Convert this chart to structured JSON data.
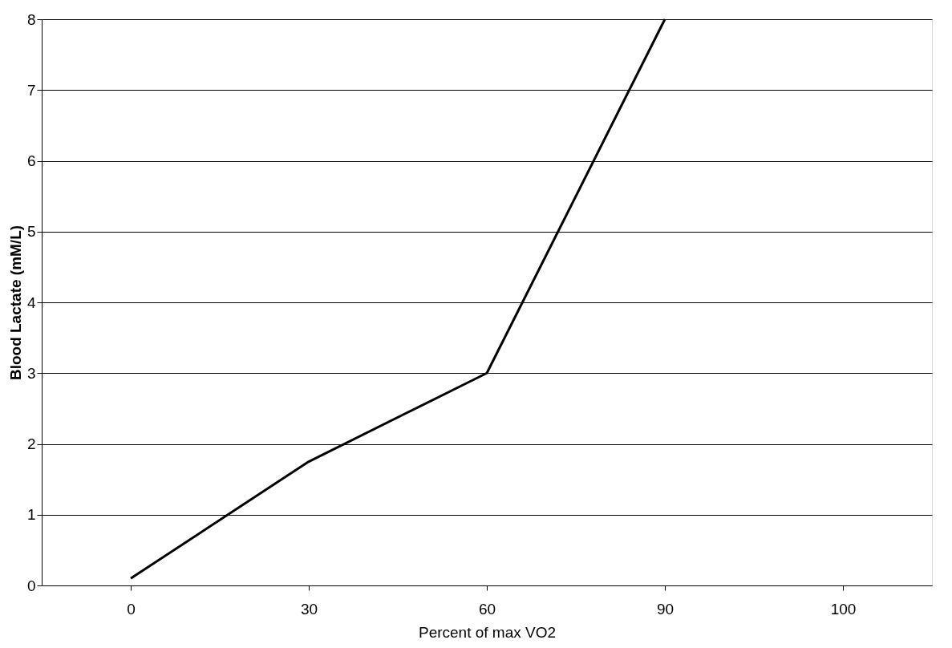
{
  "chart_data": {
    "type": "line",
    "xlabel": "Percent of max VO2",
    "ylabel": "Blood Lactate (mM/L)",
    "categories": [
      "0",
      "30",
      "60",
      "90",
      "100"
    ],
    "series": [
      {
        "color": "#000000",
        "values": [
          0.1,
          1.75,
          3,
          8,
          null
        ]
      }
    ],
    "ylim": [
      0,
      8
    ],
    "yticks": [
      0,
      1,
      2,
      3,
      4,
      5,
      6,
      7,
      8
    ],
    "grid": "y",
    "marker": "none",
    "line_style": "solid"
  }
}
